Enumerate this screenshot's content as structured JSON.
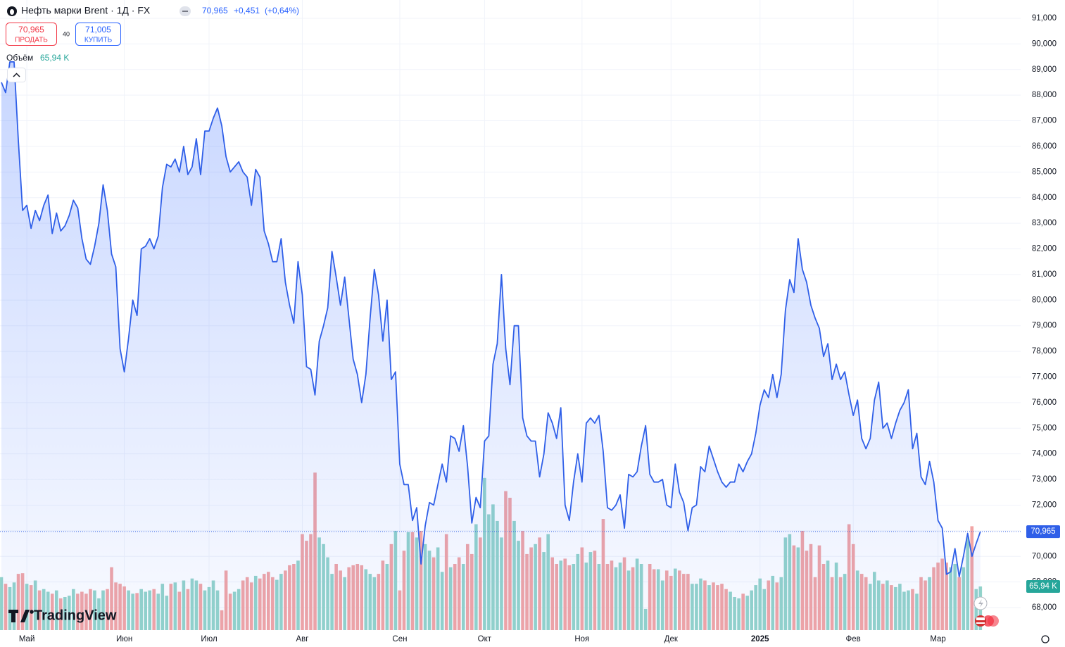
{
  "header": {
    "title": "Нефть марки Brent · 1Д · FX",
    "price": "70,965",
    "change": "+0,451",
    "change_pct": "(+0,64%)",
    "sell_price": "70,965",
    "sell_label": "ПРОДАТЬ",
    "spread": "40",
    "buy_price": "71,005",
    "buy_label": "КУПИТЬ",
    "volume_label": "Объём",
    "volume_value": "65,94 K"
  },
  "brand": "TradingView",
  "chart_data": {
    "type": "area",
    "series": [
      {
        "color": "#2f5fe8",
        "last_label": "70,965",
        "values": [
          88.5,
          88.1,
          89.3,
          89.3,
          86.2,
          83.5,
          83.7,
          82.8,
          83.5,
          83.1,
          83.7,
          84.1,
          82.6,
          83.4,
          82.7,
          82.9,
          83.3,
          83.9,
          83.6,
          82.4,
          81.6,
          81.4,
          82.1,
          83.0,
          84.5,
          83.5,
          81.8,
          81.3,
          78.1,
          77.2,
          78.5,
          80.0,
          79.4,
          82.0,
          82.1,
          82.4,
          82.0,
          82.5,
          84.4,
          85.3,
          85.2,
          85.5,
          85.0,
          86.0,
          84.9,
          85.2,
          86.3,
          84.9,
          86.6,
          86.6,
          87.1,
          87.5,
          86.8,
          85.6,
          85.0,
          85.2,
          85.4,
          85.0,
          84.8,
          83.7,
          85.1,
          84.8,
          82.7,
          82.2,
          81.5,
          81.5,
          82.4,
          80.7,
          79.8,
          79.1,
          81.5,
          80.2,
          77.4,
          77.3,
          76.3,
          78.4,
          79.0,
          79.7,
          81.9,
          80.9,
          79.8,
          80.9,
          79.3,
          77.7,
          77.1,
          76.0,
          77.1,
          79.3,
          81.2,
          80.2,
          78.4,
          80.0,
          76.9,
          77.2,
          73.6,
          72.8,
          72.8,
          71.4,
          71.9,
          69.7,
          71.2,
          72.1,
          72.0,
          72.8,
          73.6,
          72.9,
          74.7,
          74.6,
          74.1,
          75.1,
          73.5,
          71.3,
          72.3,
          71.9,
          74.5,
          74.7,
          77.5,
          78.3,
          81.0,
          78.1,
          76.7,
          79.0,
          79.0,
          75.4,
          74.7,
          74.5,
          74.5,
          73.1,
          74.0,
          75.6,
          75.2,
          74.6,
          75.8,
          72.0,
          71.4,
          72.9,
          74.0,
          72.9,
          75.2,
          75.4,
          75.2,
          75.5,
          74.1,
          71.9,
          71.8,
          72.0,
          72.4,
          71.1,
          73.2,
          73.1,
          73.3,
          74.3,
          75.1,
          73.2,
          72.9,
          72.9,
          73.0,
          72.0,
          71.9,
          73.6,
          72.5,
          72.1,
          71.0,
          71.9,
          72.0,
          73.5,
          73.3,
          74.3,
          73.8,
          73.3,
          72.9,
          72.7,
          72.9,
          72.9,
          73.6,
          73.3,
          73.7,
          74.0,
          74.8,
          75.9,
          76.5,
          76.2,
          77.1,
          76.2,
          77.1,
          79.6,
          80.8,
          80.3,
          82.4,
          81.2,
          80.7,
          79.8,
          79.3,
          78.9,
          77.8,
          78.3,
          76.9,
          77.5,
          76.9,
          77.2,
          76.3,
          75.5,
          76.1,
          74.6,
          74.2,
          74.6,
          76.1,
          76.8,
          75.0,
          75.2,
          74.6,
          75.2,
          75.7,
          76.0,
          76.5,
          74.2,
          74.8,
          73.1,
          72.8,
          73.7,
          72.9,
          71.4,
          71.1,
          69.3,
          69.4,
          70.3,
          69.2,
          70.0,
          70.9,
          70.0,
          70.5,
          70.965
        ]
      }
    ],
    "volume": {
      "up_color": "#94d4ca",
      "down_color": "#f2a5a5",
      "last_label": "65,94 K",
      "label_color": "#26a69a",
      "values": [
        80,
        70,
        65,
        72,
        85,
        86,
        70,
        68,
        75,
        60,
        62,
        58,
        55,
        60,
        48,
        50,
        52,
        62,
        55,
        58,
        55,
        62,
        60,
        48,
        60,
        62,
        95,
        72,
        70,
        66,
        60,
        55,
        56,
        62,
        58,
        60,
        62,
        55,
        70,
        52,
        70,
        72,
        58,
        75,
        62,
        78,
        75,
        70,
        60,
        65,
        75,
        60,
        30,
        90,
        55,
        58,
        62,
        75,
        80,
        72,
        82,
        78,
        85,
        88,
        80,
        76,
        85,
        90,
        98,
        100,
        105,
        145,
        135,
        145,
        238,
        140,
        130,
        110,
        85,
        100,
        90,
        80,
        95,
        98,
        100,
        98,
        92,
        85,
        80,
        85,
        105,
        100,
        130,
        150,
        60,
        120,
        148,
        148,
        140,
        150,
        130,
        120,
        110,
        125,
        88,
        145,
        95,
        100,
        110,
        100,
        130,
        115,
        160,
        140,
        230,
        175,
        190,
        165,
        140,
        210,
        200,
        165,
        135,
        150,
        115,
        125,
        130,
        140,
        118,
        145,
        110,
        100,
        105,
        108,
        98,
        100,
        115,
        125,
        102,
        118,
        120,
        100,
        168,
        100,
        105,
        95,
        102,
        110,
        90,
        95,
        108,
        100,
        32,
        100,
        92,
        92,
        75,
        90,
        82,
        93,
        90,
        85,
        85,
        70,
        70,
        78,
        75,
        68,
        72,
        68,
        70,
        62,
        58,
        50,
        48,
        55,
        52,
        60,
        68,
        78,
        62,
        75,
        82,
        72,
        80,
        140,
        145,
        128,
        125,
        150,
        120,
        130,
        80,
        128,
        100,
        105,
        80,
        102,
        80,
        85,
        160,
        130,
        90,
        85,
        80,
        70,
        88,
        75,
        70,
        75,
        68,
        65,
        70,
        58,
        60,
        62,
        55,
        80,
        75,
        80,
        95,
        102,
        108,
        102,
        95,
        100,
        80,
        95,
        140,
        157,
        62,
        65.94
      ]
    },
    "xlim": [
      -0.33,
      240.5
    ],
    "ylim": [
      67.121,
      91.714
    ],
    "grid": true,
    "xticks": [
      {
        "value": 6,
        "label": "Май"
      },
      {
        "value": 29,
        "label": "Июн"
      },
      {
        "value": 49,
        "label": "Июл"
      },
      {
        "value": 71,
        "label": "Авг"
      },
      {
        "value": 94,
        "label": "Сен"
      },
      {
        "value": 114,
        "label": "Окт"
      },
      {
        "value": 137,
        "label": "Ноя"
      },
      {
        "value": 158,
        "label": "Дек"
      },
      {
        "value": 179,
        "label": "2025"
      },
      {
        "value": 201,
        "label": "Фев"
      },
      {
        "value": 221,
        "label": "Мар"
      }
    ],
    "yticks": [
      {
        "value": 68,
        "label": "68,000"
      },
      {
        "value": 69,
        "label": "69,000"
      },
      {
        "value": 70,
        "label": "70,000"
      },
      {
        "value": 71,
        "label": "71,000"
      },
      {
        "value": 72,
        "label": "72,000"
      },
      {
        "value": 73,
        "label": "73,000"
      },
      {
        "value": 74,
        "label": "74,000"
      },
      {
        "value": 75,
        "label": "75,000"
      },
      {
        "value": 76,
        "label": "76,000"
      },
      {
        "value": 77,
        "label": "77,000"
      },
      {
        "value": 78,
        "label": "78,000"
      },
      {
        "value": 79,
        "label": "79,000"
      },
      {
        "value": 80,
        "label": "80,000"
      },
      {
        "value": 81,
        "label": "81,000"
      },
      {
        "value": 82,
        "label": "82,000"
      },
      {
        "value": 83,
        "label": "83,000"
      },
      {
        "value": 84,
        "label": "84,000"
      },
      {
        "value": 85,
        "label": "85,000"
      },
      {
        "value": 86,
        "label": "86,000"
      },
      {
        "value": 87,
        "label": "87,000"
      },
      {
        "value": 88,
        "label": "88,000"
      },
      {
        "value": 89,
        "label": "89,000"
      },
      {
        "value": 90,
        "label": "90,000"
      },
      {
        "value": 91,
        "label": "91,000"
      }
    ]
  }
}
